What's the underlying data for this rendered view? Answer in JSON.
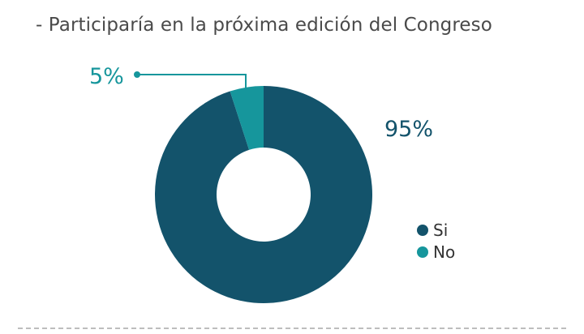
{
  "chart_data": {
    "type": "pie",
    "title": "- Participaría en la próxima edición del Congreso",
    "categories": [
      "Si",
      "No"
    ],
    "values": [
      95,
      5
    ],
    "value_labels": [
      "95%",
      "5%"
    ],
    "colors": [
      "#13536b",
      "#16969c"
    ],
    "donut": true,
    "legend": "right"
  }
}
